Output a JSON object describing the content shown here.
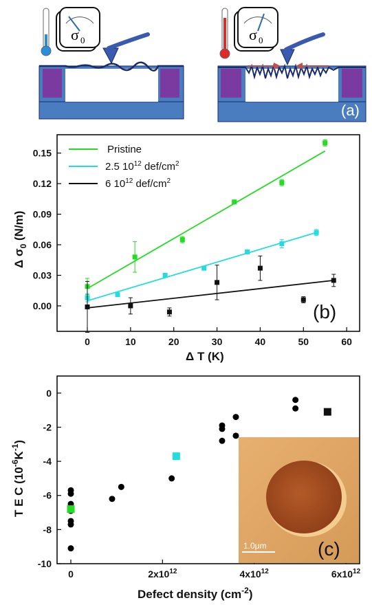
{
  "panel_a": {
    "label": "(a)",
    "gauge_text": "σ0",
    "left_gauge_text": "σ",
    "left_gauge_sub": "0",
    "right_gauge_text": "σ",
    "right_gauge_sub": "0",
    "colors": {
      "cold": "#2a8fd8",
      "hot": "#e02a2a",
      "substrate": "#4a7cc0",
      "support": "#7a3aa0",
      "membrane": "#1a2a6a",
      "arrow": "#c0504d"
    }
  },
  "chart_data": [
    {
      "type": "scatter",
      "panel_label": "(b)",
      "xlabel": "Δ T (K)",
      "ylabel_main": "Δ σ",
      "ylabel_sub": "0",
      "ylabel_unit": " (N/m)",
      "xlim": [
        -7,
        63
      ],
      "ylim": [
        -0.025,
        0.168
      ],
      "xticks": [
        0,
        10,
        20,
        30,
        40,
        50,
        60
      ],
      "yticks": [
        0.0,
        0.03,
        0.06,
        0.09,
        0.12,
        0.15
      ],
      "ytick_labels": [
        "0.00",
        "0.03",
        "0.06",
        "0.09",
        "0.12",
        "0.15"
      ],
      "grid": false,
      "legend_position": "top-left",
      "series": [
        {
          "name": "Pristine",
          "color": "#22dd22",
          "x": [
            0,
            11,
            22,
            34,
            45,
            55
          ],
          "y": [
            0.019,
            0.048,
            0.065,
            0.102,
            0.121,
            0.16
          ],
          "err": [
            0.008,
            0.015,
            0.003,
            0.002,
            0.003,
            0.003
          ],
          "fit": [
            [
              0,
              0.017
            ],
            [
              55,
              0.152
            ]
          ]
        },
        {
          "name": "2.5 10",
          "name_sup": "12",
          "name_rest": " def/cm",
          "name_sup2": "2",
          "color": "#22dddd",
          "x": [
            0,
            7,
            18,
            27,
            37,
            45,
            53
          ],
          "y": [
            0.008,
            0.011,
            0.03,
            0.037,
            0.053,
            0.061,
            0.072
          ],
          "err": [
            0.004,
            0.002,
            0.002,
            0.002,
            0.002,
            0.004,
            0.003
          ],
          "fit": [
            [
              0,
              0.005
            ],
            [
              53,
              0.072
            ]
          ]
        },
        {
          "name": "6 10",
          "name_sup": "12",
          "name_rest": " def/cm",
          "name_sup2": "2",
          "color": "#111111",
          "x": [
            0,
            10,
            19,
            30,
            40,
            50,
            57
          ],
          "y": [
            -0.001,
            0.0,
            -0.006,
            0.023,
            0.037,
            0.006,
            0.025
          ],
          "err": [
            0.025,
            0.008,
            0.004,
            0.017,
            0.012,
            0.003,
            0.006
          ],
          "fit": [
            [
              0,
              -0.002
            ],
            [
              57,
              0.025
            ]
          ]
        }
      ]
    },
    {
      "type": "scatter",
      "panel_label": "(c)",
      "xlabel": "Defect density (cm",
      "xlabel_sup": "-2",
      "xlabel_end": ")",
      "ylabel": "T E C (10",
      "ylabel_sup": "-6",
      "ylabel_mid": "K",
      "ylabel_sup2": "-1",
      "ylabel_end": ")",
      "xlim": [
        -0.3,
        6.3
      ],
      "ylim": [
        -10,
        1
      ],
      "xticks": [
        0,
        2,
        4,
        6
      ],
      "xtick_labels": [
        "0",
        "2x10",
        "4x10",
        "6x10"
      ],
      "xtick_sup": [
        "",
        "12",
        "12",
        "12"
      ],
      "yticks": [
        0,
        -2,
        -4,
        -6,
        -8,
        -10
      ],
      "ytick_labels": [
        "0",
        "-2",
        "-4",
        "-6",
        "-8",
        "-10"
      ],
      "grid": false,
      "circles": {
        "color": "#000000",
        "x": [
          0,
          0,
          0,
          0,
          0,
          0,
          0,
          0.9,
          1.1,
          2.2,
          3.3,
          3.3,
          3.3,
          3.6,
          3.6,
          4.9,
          4.9
        ],
        "y": [
          -5.7,
          -5.9,
          -6.5,
          -6.9,
          -7.5,
          -7.7,
          -9.1,
          -6.2,
          -5.5,
          -5.0,
          -1.9,
          -2.1,
          -2.8,
          -1.4,
          -2.5,
          -0.4,
          -0.9
        ]
      },
      "squares": [
        {
          "x": 0,
          "y": -6.8,
          "color": "#22dd22"
        },
        {
          "x": 2.3,
          "y": -3.7,
          "color": "#22dddd"
        },
        {
          "x": 5.6,
          "y": -1.1,
          "color": "#111111"
        }
      ],
      "inset": {
        "scalebar_label": "1.0μm"
      }
    }
  ]
}
